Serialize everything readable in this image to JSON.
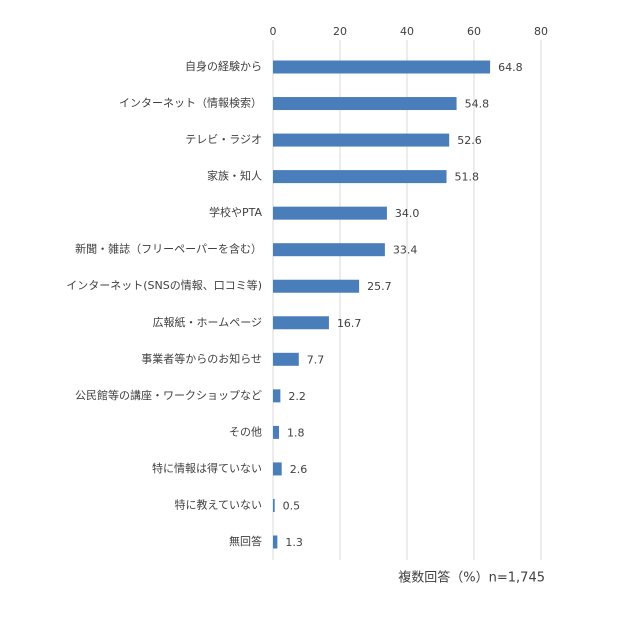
{
  "chart_data": {
    "type": "barh",
    "categories": [
      "自身の経験から",
      "インターネット（情報検索）",
      "テレビ・ラジオ",
      "家族・知人",
      "学校やPTA",
      "新聞・雑誌（フリーペーパーを含む）",
      "インターネット(SNSの情報、口コミ等)",
      "広報紙・ホームページ",
      "事業者等からのお知らせ",
      "公民館等の講座・ワークショップなど",
      "その他",
      "特に情報は得ていない",
      "特に教えていない",
      "無回答"
    ],
    "values": [
      64.8,
      54.8,
      52.6,
      51.8,
      34.0,
      33.4,
      25.7,
      16.7,
      7.7,
      2.2,
      1.8,
      2.6,
      0.5,
      1.3
    ],
    "value_labels": [
      "64.8",
      "54.8",
      "52.6",
      "51.8",
      "34.0",
      "33.4",
      "25.7",
      "16.7",
      "7.7",
      "2.2",
      "1.8",
      "2.6",
      "0.5",
      "1.3"
    ],
    "color": "#4a7ebb",
    "xlim": [
      0,
      80
    ],
    "xticks": [
      0,
      20,
      40,
      60,
      80
    ],
    "grid": true,
    "note": "複数回答（%）n=1,745"
  }
}
